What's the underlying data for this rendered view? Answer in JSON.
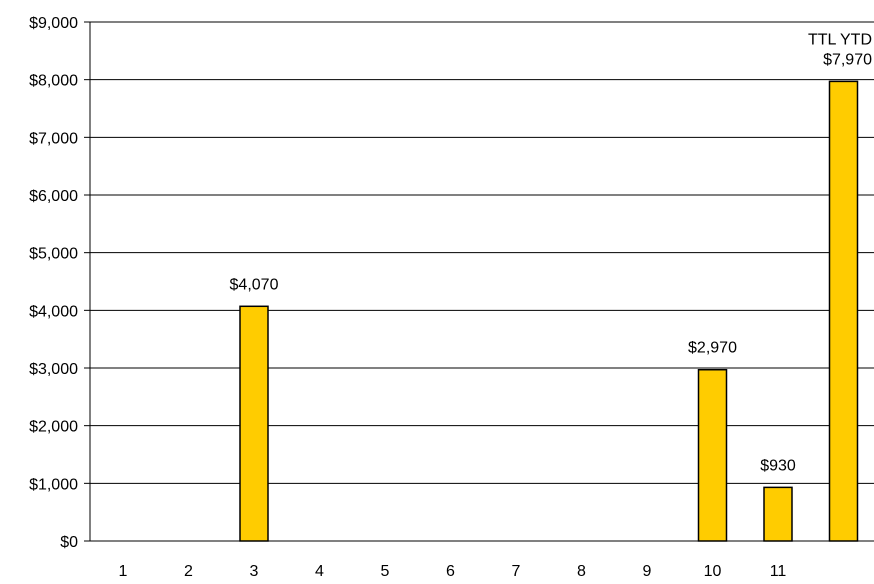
{
  "chart_data": {
    "type": "bar",
    "title": "",
    "xlabel": "",
    "ylabel": "",
    "categories": [
      "1",
      "2",
      "3",
      "4",
      "5",
      "6",
      "7",
      "8",
      "9",
      "10",
      "11",
      ""
    ],
    "values": [
      0,
      0,
      4070,
      0,
      0,
      0,
      0,
      0,
      0,
      2970,
      930,
      7970
    ],
    "data_labels": [
      "",
      "",
      "$4,070",
      "",
      "",
      "",
      "",
      "",
      "",
      "$2,970",
      "$930",
      "$7,970"
    ],
    "annotations": [
      {
        "category_index": 11,
        "text": "TTL YTD"
      }
    ],
    "y_ticks": [
      0,
      1000,
      2000,
      3000,
      4000,
      5000,
      6000,
      7000,
      8000,
      9000
    ],
    "y_tick_labels": [
      "$0",
      "$1,000",
      "$2,000",
      "$3,000",
      "$4,000",
      "$5,000",
      "$6,000",
      "$7,000",
      "$8,000",
      "$9,000"
    ],
    "ylim": [
      0,
      9000
    ],
    "grid": true,
    "legend": "none",
    "bar_color": "#FFCC00",
    "bar_edge_color": "#000000"
  }
}
